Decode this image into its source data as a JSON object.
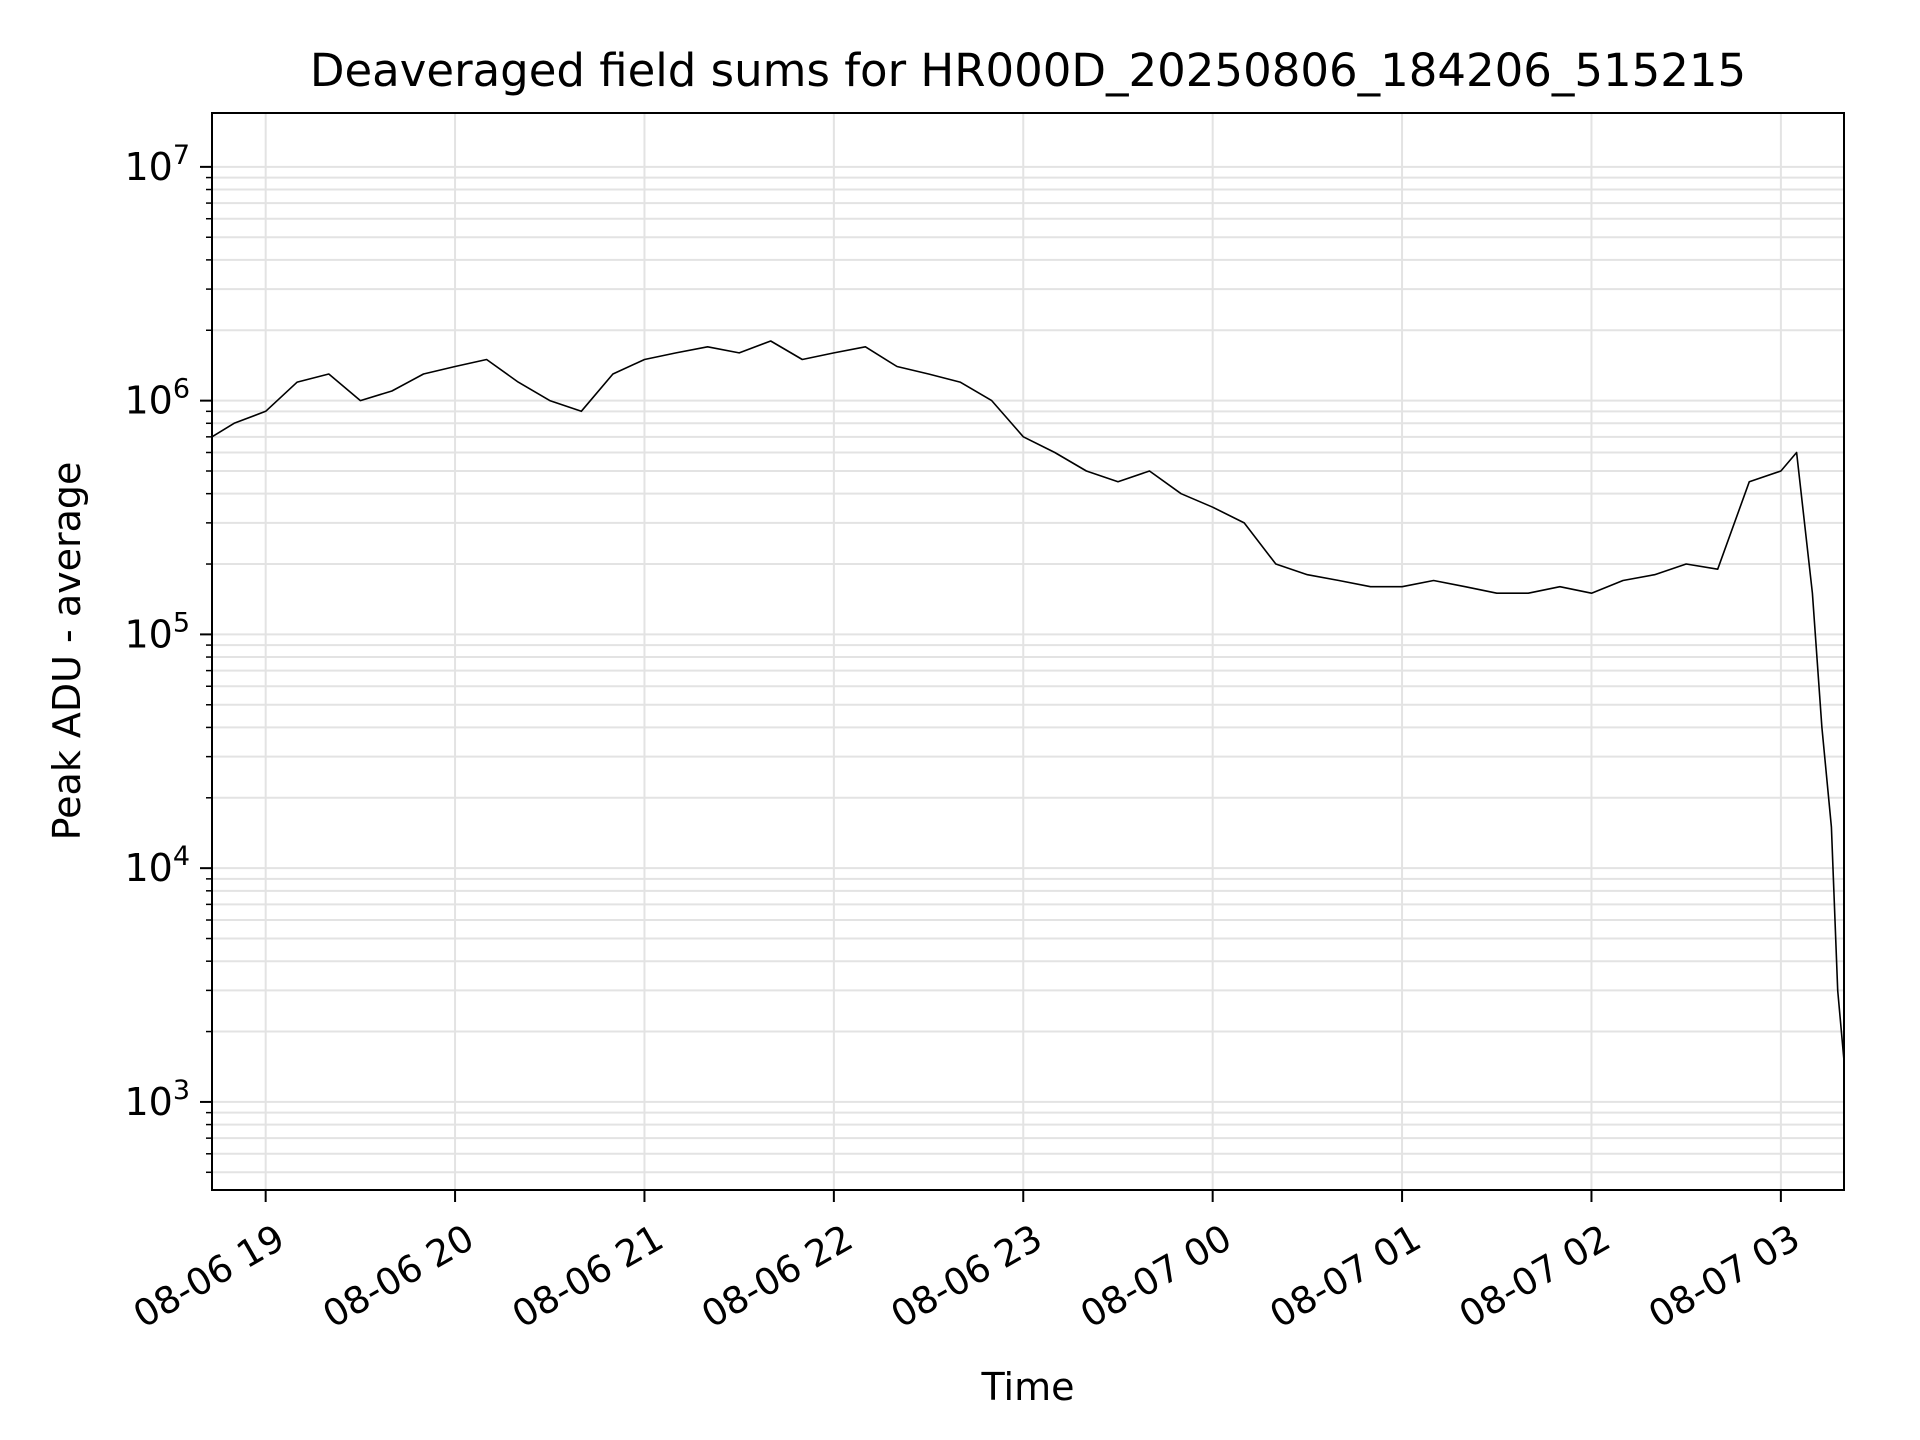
{
  "chart_data": {
    "type": "line",
    "title": "Deaveraged field sums for HR000D_20250806_184206_515215",
    "xlabel": "Time",
    "ylabel": "Peak ADU - average",
    "yscale": "log",
    "grid": true,
    "grid_minor": true,
    "xlim": [
      "2025-08-06 18:43",
      "2025-08-07 03:20"
    ],
    "ylim": [
      420,
      17000000
    ],
    "x_ticks": [
      "2025-08-06 19:00",
      "2025-08-06 20:00",
      "2025-08-06 21:00",
      "2025-08-06 22:00",
      "2025-08-06 23:00",
      "2025-08-07 00:00",
      "2025-08-07 01:00",
      "2025-08-07 02:00",
      "2025-08-07 03:00"
    ],
    "x_tick_labels": [
      "08-06 19",
      "08-06 20",
      "08-06 21",
      "08-06 22",
      "08-06 23",
      "08-07 00",
      "08-07 01",
      "08-07 02",
      "08-07 03"
    ],
    "y_ticks": [
      1000,
      10000,
      100000,
      1000000,
      10000000
    ],
    "y_tick_labels": [
      {
        "base": "10",
        "exp": "3"
      },
      {
        "base": "10",
        "exp": "4"
      },
      {
        "base": "10",
        "exp": "5"
      },
      {
        "base": "10",
        "exp": "6"
      },
      {
        "base": "10",
        "exp": "7"
      }
    ],
    "line_color": "#000000",
    "series": [
      {
        "x": [
          "2025-08-06 18:43",
          "2025-08-06 18:50",
          "2025-08-06 19:00",
          "2025-08-06 19:10",
          "2025-08-06 19:20",
          "2025-08-06 19:30",
          "2025-08-06 19:40",
          "2025-08-06 19:50",
          "2025-08-06 20:00",
          "2025-08-06 20:10",
          "2025-08-06 20:20",
          "2025-08-06 20:30",
          "2025-08-06 20:40",
          "2025-08-06 20:50",
          "2025-08-06 21:00",
          "2025-08-06 21:10",
          "2025-08-06 21:20",
          "2025-08-06 21:30",
          "2025-08-06 21:40",
          "2025-08-06 21:50",
          "2025-08-06 22:00",
          "2025-08-06 22:10",
          "2025-08-06 22:20",
          "2025-08-06 22:30",
          "2025-08-06 22:40",
          "2025-08-06 22:50",
          "2025-08-06 23:00",
          "2025-08-06 23:10",
          "2025-08-06 23:20",
          "2025-08-06 23:30",
          "2025-08-06 23:40",
          "2025-08-06 23:50",
          "2025-08-07 00:00",
          "2025-08-07 00:10",
          "2025-08-07 00:20",
          "2025-08-07 00:30",
          "2025-08-07 00:40",
          "2025-08-07 00:50",
          "2025-08-07 01:00",
          "2025-08-07 01:10",
          "2025-08-07 01:20",
          "2025-08-07 01:30",
          "2025-08-07 01:40",
          "2025-08-07 01:50",
          "2025-08-07 02:00",
          "2025-08-07 02:10",
          "2025-08-07 02:20",
          "2025-08-07 02:30",
          "2025-08-07 02:40",
          "2025-08-07 02:50",
          "2025-08-07 03:00",
          "2025-08-07 03:05",
          "2025-08-07 03:10",
          "2025-08-07 03:13",
          "2025-08-07 03:16",
          "2025-08-07 03:18",
          "2025-08-07 03:20"
        ],
        "y": [
          700000,
          800000,
          900000,
          1200000,
          1300000,
          1000000,
          1100000,
          1300000,
          1400000,
          1500000,
          1200000,
          1000000,
          900000,
          1300000,
          1500000,
          1600000,
          1700000,
          1600000,
          1800000,
          1500000,
          1600000,
          1700000,
          1400000,
          1300000,
          1200000,
          1000000,
          700000,
          600000,
          500000,
          450000,
          500000,
          400000,
          350000,
          300000,
          200000,
          180000,
          170000,
          160000,
          160000,
          170000,
          160000,
          150000,
          150000,
          160000,
          150000,
          170000,
          180000,
          200000,
          190000,
          450000,
          500000,
          600000,
          150000,
          40000,
          15000,
          3000,
          1500
        ]
      }
    ]
  }
}
